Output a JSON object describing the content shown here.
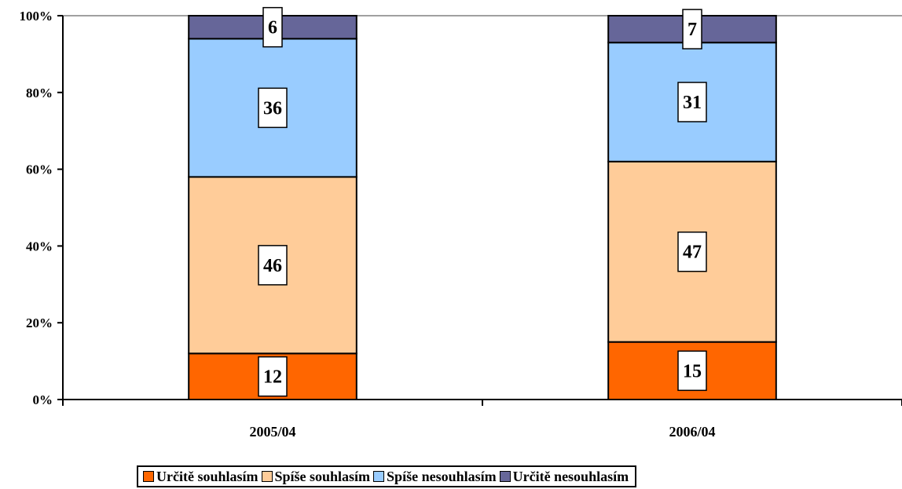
{
  "chart_data": {
    "type": "bar",
    "stacked": true,
    "percent": true,
    "categories": [
      "2005/04",
      "2006/04"
    ],
    "series": [
      {
        "name": "Určitě souhlasím",
        "color": "#ff6600",
        "values": [
          12,
          15
        ]
      },
      {
        "name": "Spíše souhlasím",
        "color": "#ffcc99",
        "values": [
          46,
          47
        ]
      },
      {
        "name": "Spíše nesouhlasím",
        "color": "#99ccff",
        "values": [
          36,
          31
        ]
      },
      {
        "name": "Určitě nesouhlasím",
        "color": "#666699",
        "values": [
          6,
          7
        ]
      }
    ],
    "y_ticks": [
      "0%",
      "20%",
      "40%",
      "60%",
      "80%",
      "100%"
    ],
    "ylim": [
      0,
      100
    ],
    "grid": false,
    "legend_position": "bottom"
  }
}
